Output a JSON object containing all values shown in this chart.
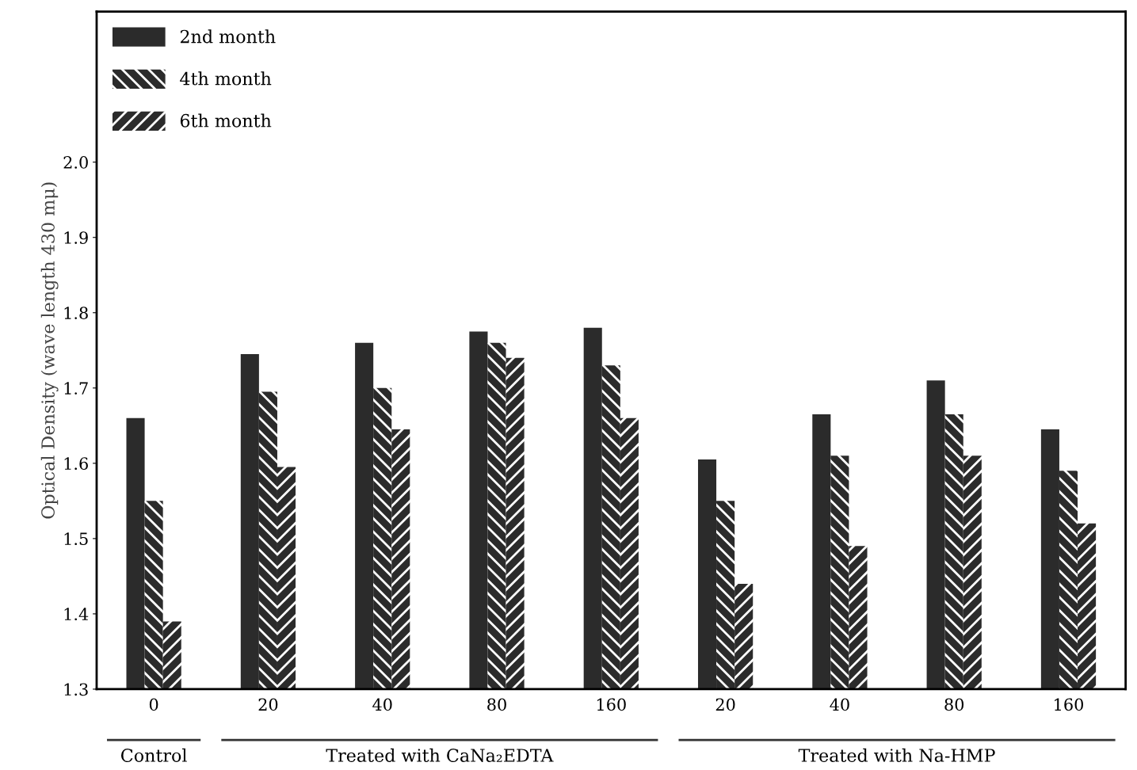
{
  "chart_data": {
    "type": "bar",
    "ylabel": "Optical Density (wave length 430 mμ)",
    "categories": [
      "0",
      "20",
      "40",
      "80",
      "160",
      "20",
      "40",
      "80",
      "160"
    ],
    "series": [
      {
        "name": "2nd month",
        "color": "#2b2b2b",
        "values": [
          1.66,
          1.745,
          1.76,
          1.775,
          1.78,
          1.605,
          1.665,
          1.71,
          1.645
        ]
      },
      {
        "name": "4th month",
        "color": "#2b2b2b",
        "values": [
          1.55,
          1.695,
          1.7,
          1.76,
          1.73,
          1.55,
          1.61,
          1.665,
          1.59
        ]
      },
      {
        "name": "6th month",
        "color": "#2b2b2b",
        "values": [
          1.39,
          1.595,
          1.645,
          1.74,
          1.66,
          1.44,
          1.49,
          1.61,
          1.52
        ]
      }
    ],
    "ylim": [
      1.3,
      2.2
    ],
    "yticks": [
      {
        "value": 1.3,
        "label": "1.3"
      },
      {
        "value": 1.4,
        "label": "1.4"
      },
      {
        "value": 1.5,
        "label": "1.5"
      },
      {
        "value": 1.6,
        "label": "1.6"
      },
      {
        "value": 1.7,
        "label": "1.7"
      },
      {
        "value": 1.8,
        "label": "1.8"
      },
      {
        "value": 1.9,
        "label": "1.9"
      },
      {
        "value": 2.0,
        "label": "2.0"
      }
    ],
    "annotations": [
      "Control",
      "Treated with CaNa₂EDTA",
      "Treated with Na-HMP"
    ],
    "legend": "top left",
    "grid": false
  }
}
